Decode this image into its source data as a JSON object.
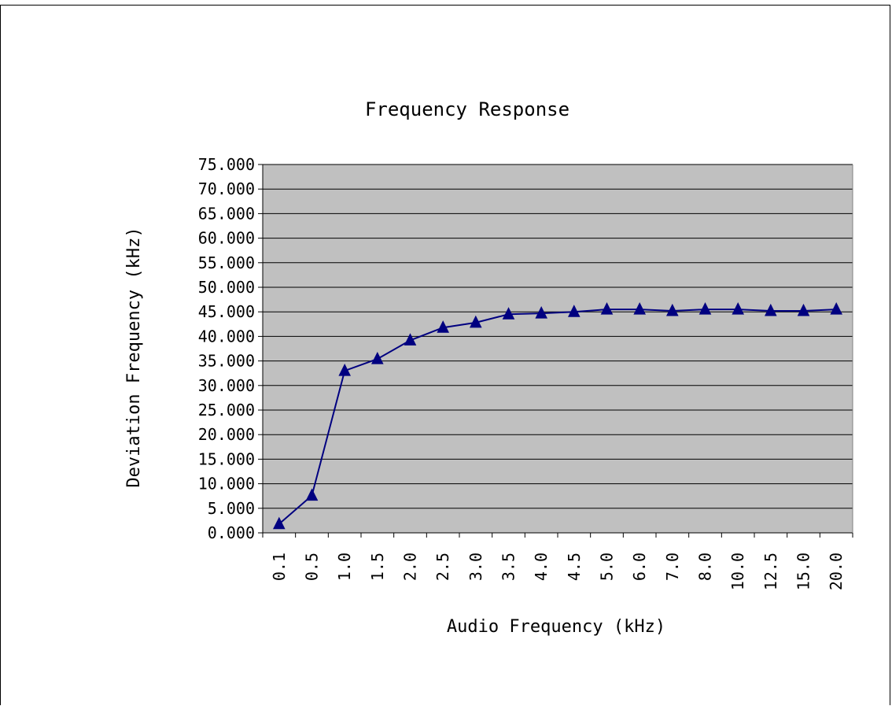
{
  "chart_data": {
    "type": "line",
    "title": "Frequency Response",
    "xlabel": "Audio Frequency (kHz)",
    "ylabel": "Deviation Frequency (kHz)",
    "categories": [
      "0.1",
      "0.5",
      "1.0",
      "1.5",
      "2.0",
      "2.5",
      "3.0",
      "3.5",
      "4.0",
      "4.5",
      "5.0",
      "6.0",
      "7.0",
      "8.0",
      "10.0",
      "12.5",
      "15.0",
      "20.0"
    ],
    "series": [
      {
        "values": [
          1.8,
          7.6,
          33.0,
          35.4,
          39.2,
          41.8,
          42.8,
          44.5,
          44.7,
          45.0,
          45.5,
          45.5,
          45.2,
          45.5,
          45.5,
          45.2,
          45.2,
          45.5
        ]
      }
    ],
    "ylim": [
      0,
      75
    ],
    "yticks": [
      "0.000",
      "5.000",
      "10.000",
      "15.000",
      "20.000",
      "25.000",
      "30.000",
      "35.000",
      "40.000",
      "45.000",
      "50.000",
      "55.000",
      "60.000",
      "65.000",
      "70.000",
      "75.000"
    ],
    "grid": true,
    "legend": "none",
    "marker": "triangle",
    "colors": {
      "plot_background": "#c0c0c0",
      "series_line": "#000080",
      "gridline": "#000000"
    }
  }
}
